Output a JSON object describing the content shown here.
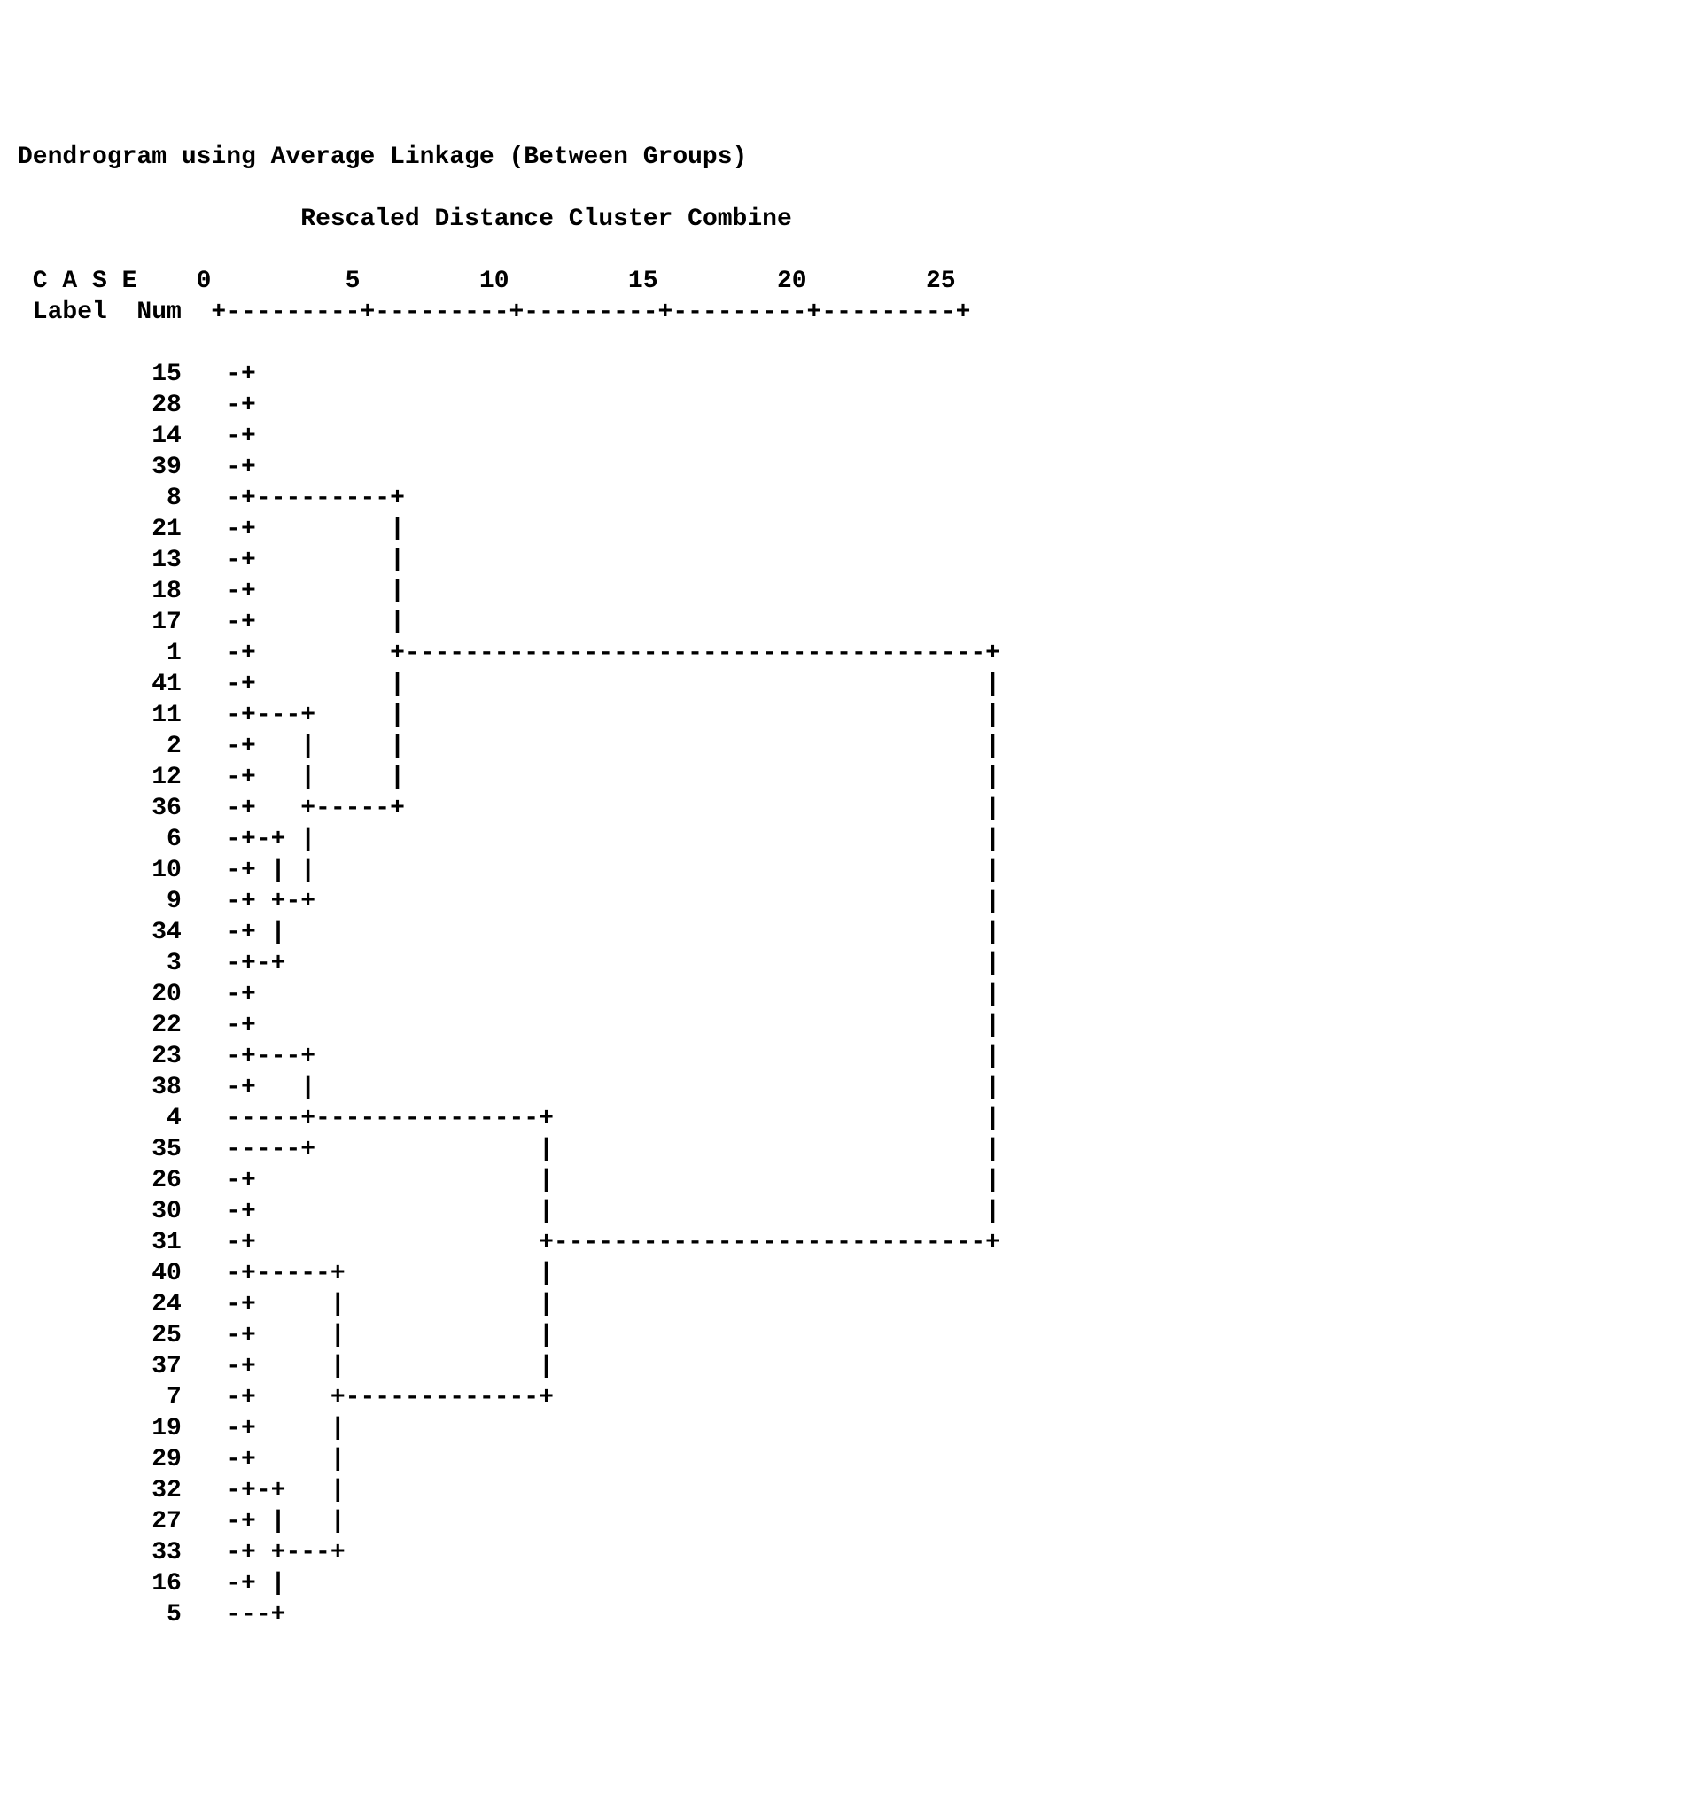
{
  "title": "Dendrogram using Average Linkage (Between Groups)",
  "subtitle": "Rescaled Distance Cluster Combine",
  "header_line1": " C A S E    0         5        10        15        20        25",
  "header_line2": " Label  Num  +---------+---------+---------+---------+---------+",
  "type": "dendrogram",
  "text_color": "#000000",
  "background_color": "#ffffff",
  "font_family": "Courier New",
  "font_weight": "bold",
  "font_size": 28,
  "scale_ticks": [
    0,
    5,
    10,
    15,
    20,
    25
  ],
  "scale_max": 25,
  "rows": [
    {
      "num": "15",
      "tree": "-+"
    },
    {
      "num": "28",
      "tree": "-+"
    },
    {
      "num": "14",
      "tree": "-+"
    },
    {
      "num": "39",
      "tree": "-+"
    },
    {
      "num": "8",
      "tree": "-+---------+"
    },
    {
      "num": "21",
      "tree": "-+         |"
    },
    {
      "num": "13",
      "tree": "-+         |"
    },
    {
      "num": "18",
      "tree": "-+         |"
    },
    {
      "num": "17",
      "tree": "-+         |"
    },
    {
      "num": "1",
      "tree": "-+         +---------------------------------------+"
    },
    {
      "num": "41",
      "tree": "-+         |                                       |"
    },
    {
      "num": "11",
      "tree": "-+---+     |                                       |"
    },
    {
      "num": "2",
      "tree": "-+   |     |                                       |"
    },
    {
      "num": "12",
      "tree": "-+   |     |                                       |"
    },
    {
      "num": "36",
      "tree": "-+   +-----+                                       |"
    },
    {
      "num": "6",
      "tree": "-+-+ |                                             |"
    },
    {
      "num": "10",
      "tree": "-+ | |                                             |"
    },
    {
      "num": "9",
      "tree": "-+ +-+                                             |"
    },
    {
      "num": "34",
      "tree": "-+ |                                               |"
    },
    {
      "num": "3",
      "tree": "-+-+                                               |"
    },
    {
      "num": "20",
      "tree": "-+                                                 |"
    },
    {
      "num": "22",
      "tree": "-+                                                 |"
    },
    {
      "num": "23",
      "tree": "-+---+                                             |"
    },
    {
      "num": "38",
      "tree": "-+   |                                             |"
    },
    {
      "num": "4",
      "tree": "-----+---------------+                             |"
    },
    {
      "num": "35",
      "tree": "-----+               |                             |"
    },
    {
      "num": "26",
      "tree": "-+                   |                             |"
    },
    {
      "num": "30",
      "tree": "-+                   |                             |"
    },
    {
      "num": "31",
      "tree": "-+                   +-----------------------------+"
    },
    {
      "num": "40",
      "tree": "-+-----+             |"
    },
    {
      "num": "24",
      "tree": "-+     |             |"
    },
    {
      "num": "25",
      "tree": "-+     |             |"
    },
    {
      "num": "37",
      "tree": "-+     |             |"
    },
    {
      "num": "7",
      "tree": "-+     +-------------+"
    },
    {
      "num": "19",
      "tree": "-+     |"
    },
    {
      "num": "29",
      "tree": "-+     |"
    },
    {
      "num": "32",
      "tree": "-+-+   |"
    },
    {
      "num": "27",
      "tree": "-+ |   |"
    },
    {
      "num": "33",
      "tree": "-+ +---+"
    },
    {
      "num": "16",
      "tree": "-+ |"
    },
    {
      "num": "5",
      "tree": "---+"
    }
  ]
}
